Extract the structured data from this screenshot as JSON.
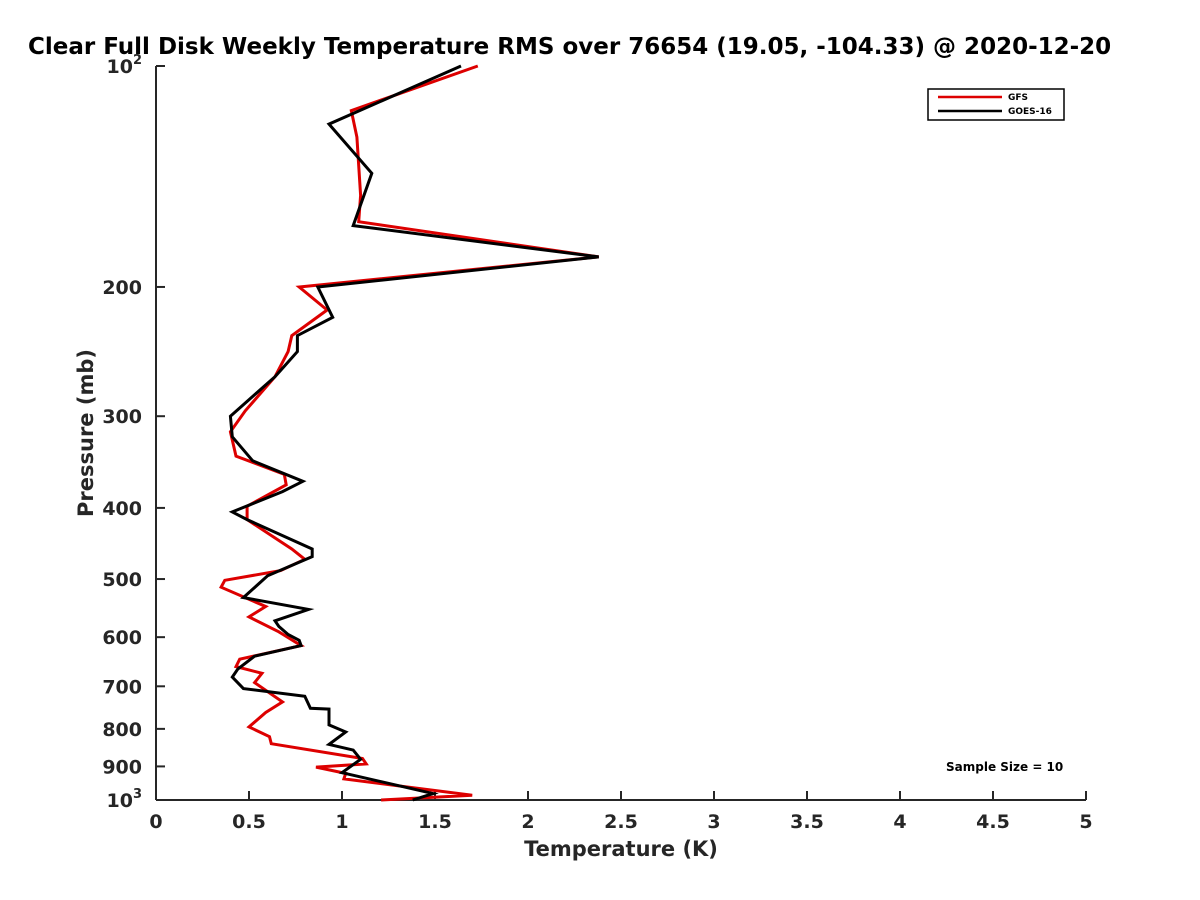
{
  "chart_data": {
    "type": "line",
    "title": "Clear Full Disk Weekly Temperature RMS over 76654 (19.05, -104.33) @ 2020-12-20",
    "xlabel": "Temperature (K)",
    "ylabel": "Pressure (mb)",
    "xlim": [
      0,
      5
    ],
    "ylim": [
      100,
      1000
    ],
    "y_scale": "log",
    "y_reversed": true,
    "x_ticks": [
      "0",
      "0.5",
      "1",
      "1.5",
      "2",
      "2.5",
      "3",
      "3.5",
      "4",
      "4.5",
      "5"
    ],
    "y_ticks": [
      {
        "value": 100,
        "label": "10",
        "sup": "2"
      },
      {
        "value": 200,
        "label": "200"
      },
      {
        "value": 300,
        "label": "300"
      },
      {
        "value": 400,
        "label": "400"
      },
      {
        "value": 500,
        "label": "500"
      },
      {
        "value": 600,
        "label": "600"
      },
      {
        "value": 700,
        "label": "700"
      },
      {
        "value": 800,
        "label": "800"
      },
      {
        "value": 900,
        "label": "900"
      },
      {
        "value": 1000,
        "label": "10",
        "sup": "3"
      }
    ],
    "grid": false,
    "legend_position": "top-right",
    "annotation": "Sample Size = 10",
    "series": [
      {
        "name": "GFS",
        "color": "#dd0000",
        "points": [
          [
            1.73,
            100
          ],
          [
            1.05,
            115
          ],
          [
            1.08,
            125
          ],
          [
            1.1,
            150
          ],
          [
            1.09,
            163
          ],
          [
            2.38,
            182
          ],
          [
            0.77,
            200
          ],
          [
            0.92,
            215
          ],
          [
            0.73,
            233
          ],
          [
            0.71,
            245
          ],
          [
            0.64,
            265
          ],
          [
            0.48,
            295
          ],
          [
            0.4,
            315
          ],
          [
            0.43,
            340
          ],
          [
            0.69,
            360
          ],
          [
            0.7,
            372
          ],
          [
            0.49,
            398
          ],
          [
            0.49,
            415
          ],
          [
            0.73,
            455
          ],
          [
            0.8,
            470
          ],
          [
            0.67,
            487
          ],
          [
            0.37,
            502
          ],
          [
            0.35,
            513
          ],
          [
            0.59,
            545
          ],
          [
            0.5,
            563
          ],
          [
            0.66,
            590
          ],
          [
            0.78,
            616
          ],
          [
            0.45,
            643
          ],
          [
            0.43,
            658
          ],
          [
            0.57,
            672
          ],
          [
            0.53,
            692
          ],
          [
            0.68,
            735
          ],
          [
            0.59,
            760
          ],
          [
            0.5,
            795
          ],
          [
            0.61,
            820
          ],
          [
            0.62,
            838
          ],
          [
            1.11,
            878
          ],
          [
            1.13,
            893
          ],
          [
            0.86,
            902
          ],
          [
            1.02,
            920
          ],
          [
            1.01,
            936
          ],
          [
            1.7,
            985
          ],
          [
            1.21,
            1000
          ]
        ]
      },
      {
        "name": "GOES-16",
        "color": "#000000",
        "points": [
          [
            1.64,
            100
          ],
          [
            0.93,
            120
          ],
          [
            1.16,
            140
          ],
          [
            1.06,
            165
          ],
          [
            2.38,
            182
          ],
          [
            0.87,
            200
          ],
          [
            0.95,
            220
          ],
          [
            0.76,
            233
          ],
          [
            0.76,
            245
          ],
          [
            0.64,
            265
          ],
          [
            0.4,
            300
          ],
          [
            0.41,
            320
          ],
          [
            0.52,
            345
          ],
          [
            0.79,
            368
          ],
          [
            0.68,
            380
          ],
          [
            0.41,
            405
          ],
          [
            0.49,
            415
          ],
          [
            0.84,
            455
          ],
          [
            0.84,
            466
          ],
          [
            0.6,
            495
          ],
          [
            0.47,
            530
          ],
          [
            0.82,
            550
          ],
          [
            0.64,
            570
          ],
          [
            0.66,
            580
          ],
          [
            0.71,
            595
          ],
          [
            0.77,
            606
          ],
          [
            0.78,
            616
          ],
          [
            0.53,
            637
          ],
          [
            0.44,
            663
          ],
          [
            0.41,
            680
          ],
          [
            0.47,
            705
          ],
          [
            0.8,
            722
          ],
          [
            0.83,
            750
          ],
          [
            0.93,
            752
          ],
          [
            0.93,
            790
          ],
          [
            1.02,
            808
          ],
          [
            0.93,
            840
          ],
          [
            1.06,
            855
          ],
          [
            1.1,
            880
          ],
          [
            1.0,
            918
          ],
          [
            1.49,
            980
          ],
          [
            1.38,
            1000
          ]
        ]
      }
    ]
  }
}
